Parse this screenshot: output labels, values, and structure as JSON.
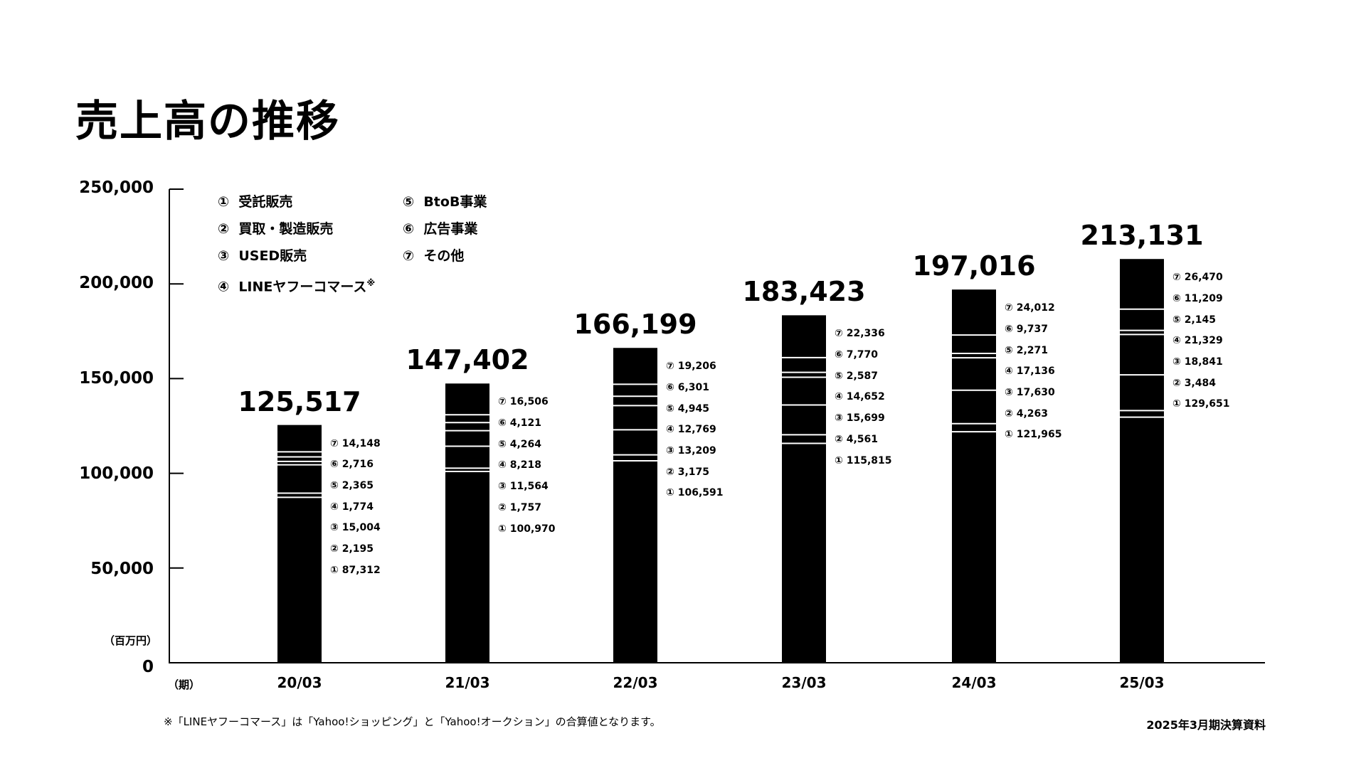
{
  "title": "売上高の推移",
  "legend": {
    "left": [
      {
        "mark": "①",
        "label": "受託販売",
        "note": ""
      },
      {
        "mark": "②",
        "label": "買取・製造販売",
        "note": ""
      },
      {
        "mark": "③",
        "label": "USED販売",
        "note": ""
      },
      {
        "mark": "④",
        "label": "LINEヤフーコマース",
        "note": "※"
      }
    ],
    "right": [
      {
        "mark": "⑤",
        "label": "BtoB事業"
      },
      {
        "mark": "⑥",
        "label": "広告事業"
      },
      {
        "mark": "⑦",
        "label": "その他"
      }
    ]
  },
  "y_unit": "（百万円）",
  "x_unit": "（期）",
  "y_ticks": [
    "250,000",
    "200,000",
    "150,000",
    "100,000",
    "50,000",
    "0"
  ],
  "footnote": "※「LINEヤフーコマース」は「Yahoo!ショッピング」と「Yahoo!オークション」の合算値となります。",
  "source": "2025年3月期決算資料",
  "marks": [
    "①",
    "②",
    "③",
    "④",
    "⑤",
    "⑥",
    "⑦"
  ],
  "chart_data": {
    "type": "bar",
    "stacked": true,
    "ylim": [
      0,
      250000
    ],
    "categories": [
      "20/03",
      "21/03",
      "22/03",
      "23/03",
      "24/03",
      "25/03"
    ],
    "totals": [
      "125,517",
      "147,402",
      "166,199",
      "183,423",
      "197,016",
      "213,131"
    ],
    "series": [
      {
        "name": "① 受託販売",
        "values": [
          87312,
          100970,
          106591,
          115815,
          121965,
          129651
        ],
        "labels": [
          "87,312",
          "100,970",
          "106,591",
          "115,815",
          "121,965",
          "129,651"
        ]
      },
      {
        "name": "② 買取・製造販売",
        "values": [
          2195,
          1757,
          3175,
          4561,
          4263,
          3484
        ],
        "labels": [
          "2,195",
          "1,757",
          "3,175",
          "4,561",
          "4,263",
          "3,484"
        ]
      },
      {
        "name": "③ USED販売",
        "values": [
          15004,
          11564,
          13209,
          15699,
          17630,
          18841
        ],
        "labels": [
          "15,004",
          "11,564",
          "13,209",
          "15,699",
          "17,630",
          "18,841"
        ]
      },
      {
        "name": "④ LINEヤフーコマース",
        "values": [
          1774,
          8218,
          12769,
          14652,
          17136,
          21329
        ],
        "labels": [
          "1,774",
          "8,218",
          "12,769",
          "14,652",
          "17,136",
          "21,329"
        ]
      },
      {
        "name": "⑤ BtoB事業",
        "values": [
          2365,
          4264,
          4945,
          2587,
          2271,
          2145
        ],
        "labels": [
          "2,365",
          "4,264",
          "4,945",
          "2,587",
          "2,271",
          "2,145"
        ]
      },
      {
        "name": "⑥ 広告事業",
        "values": [
          2716,
          4121,
          6301,
          7770,
          9737,
          11209
        ],
        "labels": [
          "2,716",
          "4,121",
          "6,301",
          "7,770",
          "9,737",
          "11,209"
        ]
      },
      {
        "name": "⑦ その他",
        "values": [
          14148,
          16506,
          19206,
          22336,
          24012,
          26470
        ],
        "labels": [
          "14,148",
          "16,506",
          "19,206",
          "22,336",
          "24,012",
          "26,470"
        ]
      }
    ],
    "colors": {
      "bar": "#000000",
      "separator": "#ffffff",
      "axis": "#000000"
    }
  }
}
